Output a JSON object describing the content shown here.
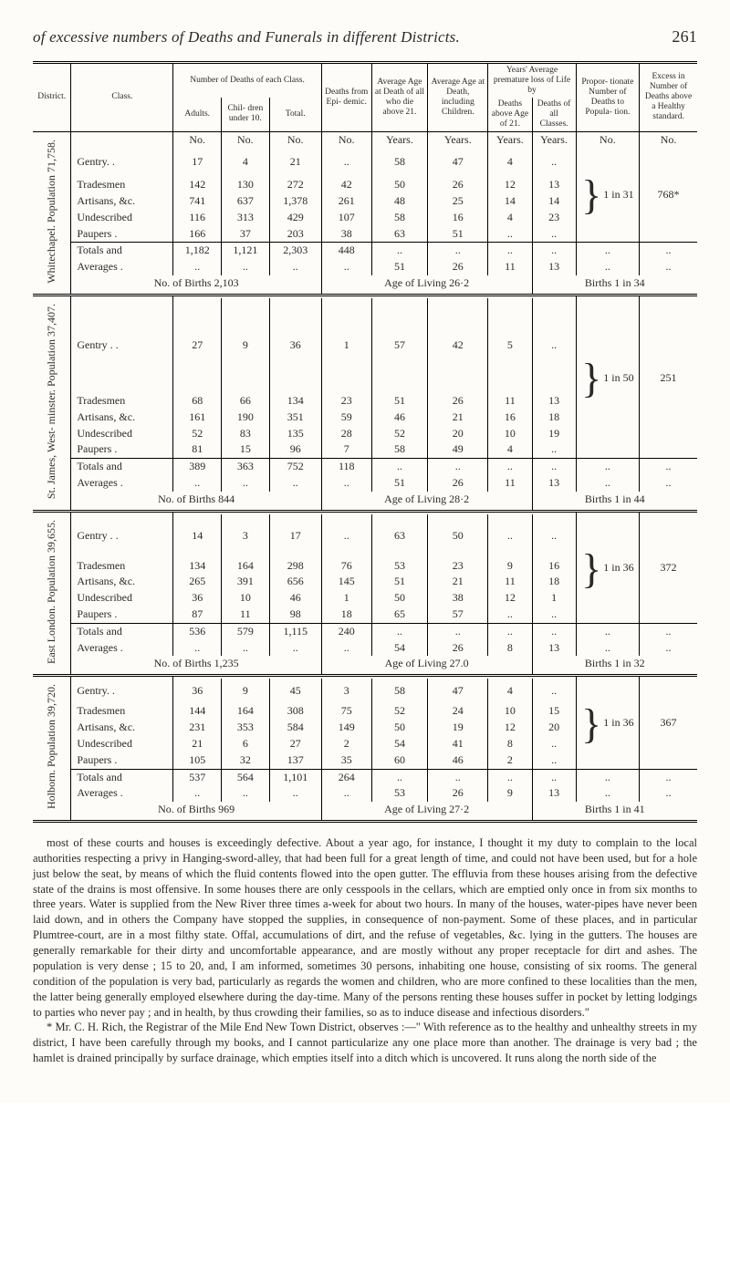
{
  "page_number": "261",
  "running_title": "of excessive numbers of Deaths and Funerals in different Districts.",
  "header": {
    "district": "District.",
    "class": "Class.",
    "deaths_each_class": "Number of Deaths of each Class.",
    "adults": "Adults.",
    "children": "Chil- dren under 10.",
    "total": "Total.",
    "deaths_from_epi": "Deaths from Epi- demic.",
    "avg_age_death": "Average Age at Death of all who die above 21.",
    "avg_age_death_inc": "Average Age at Death, including Children.",
    "years_avg_life": "Years' Average premature loss of Life by",
    "deaths_above_age": "Deaths above Age of 21.",
    "deaths_all_classes": "Deaths of all Classes.",
    "propor_num_deaths": "Propor- tionate Number of Deaths to Popula- tion.",
    "excess_in_number": "Excess in Number of Deaths above a Healthy standard.",
    "unit_no": "No.",
    "unit_years": "Years."
  },
  "districts": [
    {
      "name": "Whitechapel. Population 71,758.",
      "rows": [
        {
          "class": "Gentry.  .",
          "adults": "17",
          "children": "4",
          "total": "21",
          "epi": "..",
          "aad": "58",
          "aadi": "47",
          "ya1": "4",
          "ya2": ".."
        },
        {
          "class": "Tradesmen",
          "adults": "142",
          "children": "130",
          "total": "272",
          "epi": "42",
          "aad": "50",
          "aadi": "26",
          "ya1": "12",
          "ya2": "13"
        },
        {
          "class": "Artisans, &c.",
          "adults": "741",
          "children": "637",
          "total": "1,378",
          "epi": "261",
          "aad": "48",
          "aadi": "25",
          "ya1": "14",
          "ya2": "14"
        },
        {
          "class": "Undescribed",
          "adults": "116",
          "children": "313",
          "total": "429",
          "epi": "107",
          "aad": "58",
          "aadi": "16",
          "ya1": "4",
          "ya2": "23"
        },
        {
          "class": "Paupers   .",
          "adults": "166",
          "children": "37",
          "total": "203",
          "epi": "38",
          "aad": "63",
          "aadi": "51",
          "ya1": "..",
          "ya2": ".."
        }
      ],
      "brace_label": "1 in 31",
      "excess": "768*",
      "totals": {
        "class": "Totals and",
        "adults": "1,182",
        "children": "1,121",
        "total": "2,303",
        "epi": "448",
        "aad": "..",
        "aadi": "..",
        "ya1": "..",
        "ya2": "..",
        "prop": "..",
        "exc": ".."
      },
      "averages": {
        "class": "Averages .",
        "adults": "..",
        "children": "..",
        "total": "..",
        "epi": "..",
        "aad": "51",
        "aadi": "26",
        "ya1": "11",
        "ya2": "13",
        "prop": "..",
        "exc": ".."
      },
      "footer_left": "No. of Births  2,103",
      "footer_mid": "Age of Living  26·2",
      "footer_right": "Births  1 in 34"
    },
    {
      "name": "St. James, West- minster. Population 37,407.",
      "rows": [
        {
          "class": "Gentry .  .",
          "adults": "27",
          "children": "9",
          "total": "36",
          "epi": "1",
          "aad": "57",
          "aadi": "42",
          "ya1": "5",
          "ya2": ".."
        },
        {
          "class": "Tradesmen",
          "adults": "68",
          "children": "66",
          "total": "134",
          "epi": "23",
          "aad": "51",
          "aadi": "26",
          "ya1": "11",
          "ya2": "13"
        },
        {
          "class": "Artisans, &c.",
          "adults": "161",
          "children": "190",
          "total": "351",
          "epi": "59",
          "aad": "46",
          "aadi": "21",
          "ya1": "16",
          "ya2": "18"
        },
        {
          "class": "Undescribed",
          "adults": "52",
          "children": "83",
          "total": "135",
          "epi": "28",
          "aad": "52",
          "aadi": "20",
          "ya1": "10",
          "ya2": "19"
        },
        {
          "class": "Paupers   .",
          "adults": "81",
          "children": "15",
          "total": "96",
          "epi": "7",
          "aad": "58",
          "aadi": "49",
          "ya1": "4",
          "ya2": ".."
        }
      ],
      "brace_label": "1 in 50",
      "excess": "251",
      "totals": {
        "class": "Totals and",
        "adults": "389",
        "children": "363",
        "total": "752",
        "epi": "118",
        "aad": "..",
        "aadi": "..",
        "ya1": "..",
        "ya2": "..",
        "prop": "..",
        "exc": ".."
      },
      "averages": {
        "class": "Averages .",
        "adults": "..",
        "children": "..",
        "total": "..",
        "epi": "..",
        "aad": "51",
        "aadi": "26",
        "ya1": "11",
        "ya2": "13",
        "prop": "..",
        "exc": ".."
      },
      "footer_left": "No. of Births   844",
      "footer_mid": "Age of Living  28·2",
      "footer_right": "Births  1 in 44"
    },
    {
      "name": "East London. Population 39,655.",
      "rows": [
        {
          "class": "Gentry .  .",
          "adults": "14",
          "children": "3",
          "total": "17",
          "epi": "..",
          "aad": "63",
          "aadi": "50",
          "ya1": "..",
          "ya2": ".."
        },
        {
          "class": "Tradesmen",
          "adults": "134",
          "children": "164",
          "total": "298",
          "epi": "76",
          "aad": "53",
          "aadi": "23",
          "ya1": "9",
          "ya2": "16"
        },
        {
          "class": "Artisans, &c.",
          "adults": "265",
          "children": "391",
          "total": "656",
          "epi": "145",
          "aad": "51",
          "aadi": "21",
          "ya1": "11",
          "ya2": "18"
        },
        {
          "class": "Undescribed",
          "adults": "36",
          "children": "10",
          "total": "46",
          "epi": "1",
          "aad": "50",
          "aadi": "38",
          "ya1": "12",
          "ya2": "1"
        },
        {
          "class": "Paupers   .",
          "adults": "87",
          "children": "11",
          "total": "98",
          "epi": "18",
          "aad": "65",
          "aadi": "57",
          "ya1": "..",
          "ya2": ".."
        }
      ],
      "brace_label": "1 in 36",
      "excess": "372",
      "totals": {
        "class": "Totals and",
        "adults": "536",
        "children": "579",
        "total": "1,115",
        "epi": "240",
        "aad": "..",
        "aadi": "..",
        "ya1": "..",
        "ya2": "..",
        "prop": "..",
        "exc": ".."
      },
      "averages": {
        "class": "Averages .",
        "adults": "..",
        "children": "..",
        "total": "..",
        "epi": "..",
        "aad": "54",
        "aadi": "26",
        "ya1": "8",
        "ya2": "13",
        "prop": "..",
        "exc": ".."
      },
      "footer_left": "No. of Births  1,235",
      "footer_mid": "Age of Living  27.0",
      "footer_right": "Births  1 in 32"
    },
    {
      "name": "Holborn. Population 39,720.",
      "rows": [
        {
          "class": "Gentry.   .",
          "adults": "36",
          "children": "9",
          "total": "45",
          "epi": "3",
          "aad": "58",
          "aadi": "47",
          "ya1": "4",
          "ya2": ".."
        },
        {
          "class": "Tradesmen",
          "adults": "144",
          "children": "164",
          "total": "308",
          "epi": "75",
          "aad": "52",
          "aadi": "24",
          "ya1": "10",
          "ya2": "15"
        },
        {
          "class": "Artisans, &c.",
          "adults": "231",
          "children": "353",
          "total": "584",
          "epi": "149",
          "aad": "50",
          "aadi": "19",
          "ya1": "12",
          "ya2": "20"
        },
        {
          "class": "Undescribed",
          "adults": "21",
          "children": "6",
          "total": "27",
          "epi": "2",
          "aad": "54",
          "aadi": "41",
          "ya1": "8",
          "ya2": ".."
        },
        {
          "class": "Paupers   .",
          "adults": "105",
          "children": "32",
          "total": "137",
          "epi": "35",
          "aad": "60",
          "aadi": "46",
          "ya1": "2",
          "ya2": ".."
        }
      ],
      "brace_label": "1 in 36",
      "excess": "367",
      "totals": {
        "class": "Totals and",
        "adults": "537",
        "children": "564",
        "total": "1,101",
        "epi": "264",
        "aad": "..",
        "aadi": "..",
        "ya1": "..",
        "ya2": "..",
        "prop": "..",
        "exc": ".."
      },
      "averages": {
        "class": "Averages .",
        "adults": "..",
        "children": "..",
        "total": "..",
        "epi": "..",
        "aad": "53",
        "aadi": "26",
        "ya1": "9",
        "ya2": "13",
        "prop": "..",
        "exc": ".."
      },
      "footer_left": "No. of Births   969",
      "footer_mid": "Age of Living  27·2",
      "footer_right": "Births  1 in 41"
    }
  ],
  "footnote": {
    "para1": "most of these courts and houses is exceedingly defective.  About a year ago, for instance, I thought it my duty to complain to the local authorities respecting a privy in Hanging-sword-alley, that had been full for a great length of time, and could not have been used, but for a hole just below the seat, by means of which the fluid contents flowed into the open gutter.  The effluvia from these houses arising from the defective state of the drains is most offensive.  In some houses there are only cesspools in the cellars, which are emptied only once in from six months to three years.  Water is supplied from the New River three times a-week for about two hours.  In many of the houses, water-pipes have never been laid down, and in others the Company have stopped the supplies, in consequence of non-payment.  Some of these places, and in particular Plumtree-court, are in a most filthy state.  Offal, accumulations of dirt, and the refuse of vegetables, &c. lying in the gutters.  The houses are generally remarkable for their dirty and uncomfortable appearance, and are mostly without any proper receptacle for dirt and ashes.  The population is very dense ; 15 to 20, and, I am informed, sometimes 30 persons, inhabiting one house, consisting of six rooms.  The general condition of the population is very bad, particularly as regards the women and children, who are more confined to these localities than the men, the latter being generally employed elsewhere during the day-time.  Many of the persons renting these houses suffer in pocket by letting lodgings to parties who never pay ; and in health, by thus crowding their families, so as to induce disease and infectious disorders.\"",
    "para2": "* Mr. C. H. Rich, the Registrar of the Mile End New Town District, observes :—\" With reference as to the healthy and unhealthy streets in my district, I have been carefully through my books, and I cannot particularize any one place more than another.  The drainage is very bad ; the hamlet is drained principally by surface drainage, which empties itself into a ditch which is uncovered.  It runs along the north side of the"
  }
}
